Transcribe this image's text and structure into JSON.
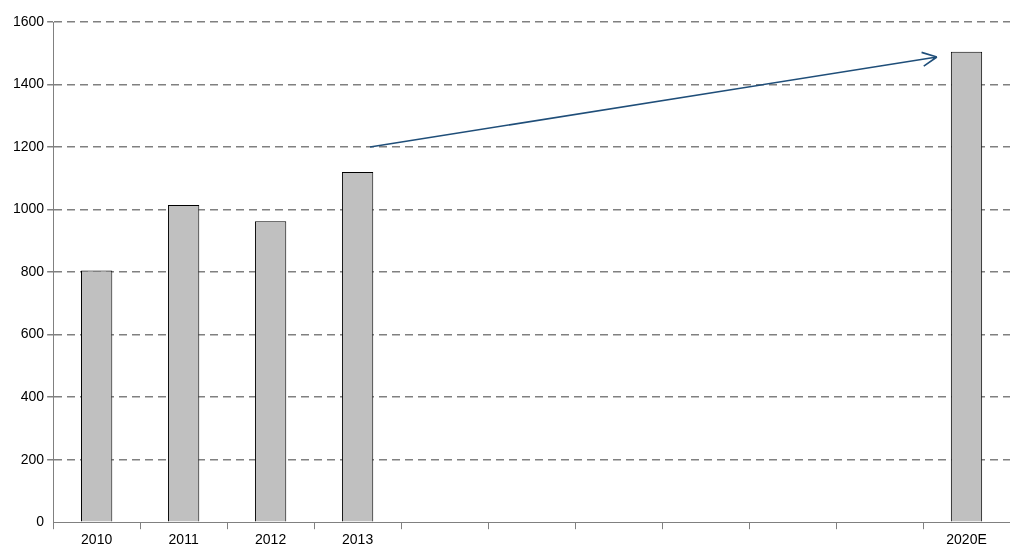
{
  "chart_data": {
    "type": "bar",
    "categories": [
      "2010",
      "2011",
      "2012",
      "2013",
      null,
      null,
      null,
      null,
      null,
      null,
      "2020E"
    ],
    "values": [
      805,
      1015,
      963,
      1120,
      null,
      null,
      null,
      null,
      null,
      null,
      1505
    ],
    "color": "#c0c0c0",
    "ylim": [
      0,
      1600
    ],
    "yticks": [
      0,
      200,
      400,
      600,
      800,
      1000,
      1200,
      1400,
      1600
    ],
    "grid": "y"
  }
}
